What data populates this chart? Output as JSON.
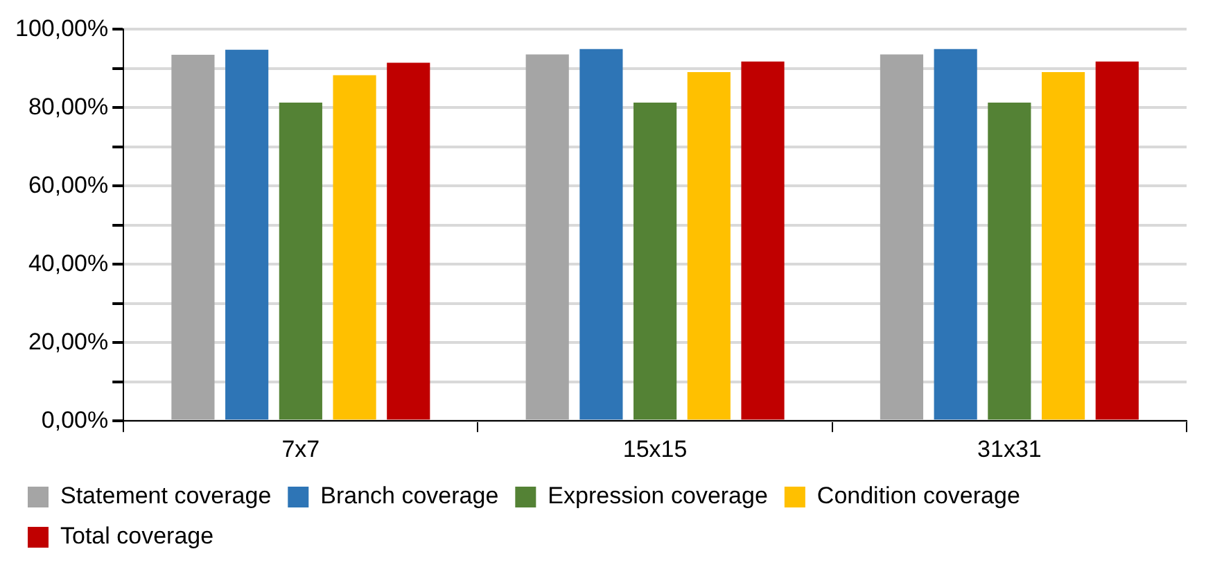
{
  "chart_data": {
    "type": "bar",
    "categories": [
      "7x7",
      "15x15",
      "31x31"
    ],
    "series": [
      {
        "name": "Statement coverage",
        "color": "#a5a5a5",
        "values": [
          93.5,
          93.6,
          93.6
        ]
      },
      {
        "name": "Branch coverage",
        "color": "#2e75b6",
        "values": [
          94.8,
          95.0,
          95.0
        ]
      },
      {
        "name": "Expression coverage",
        "color": "#548235",
        "values": [
          81.3,
          81.3,
          81.3
        ]
      },
      {
        "name": "Condition coverage",
        "color": "#ffc000",
        "values": [
          88.3,
          89.1,
          89.1
        ]
      },
      {
        "name": "Total coverage",
        "color": "#c00000",
        "values": [
          91.5,
          91.8,
          91.8
        ]
      }
    ],
    "ylim": [
      0,
      100
    ],
    "yticks": [
      {
        "value": 0,
        "label": "0,00%"
      },
      {
        "value": 10,
        "label": null
      },
      {
        "value": 20,
        "label": "20,00%"
      },
      {
        "value": 30,
        "label": null
      },
      {
        "value": 40,
        "label": "40,00%"
      },
      {
        "value": 50,
        "label": null
      },
      {
        "value": 60,
        "label": "60,00%"
      },
      {
        "value": 70,
        "label": null
      },
      {
        "value": 80,
        "label": "80,00%"
      },
      {
        "value": 90,
        "label": null
      },
      {
        "value": 100,
        "label": "100,00%"
      }
    ],
    "grid": "y",
    "legend": "bottom"
  }
}
